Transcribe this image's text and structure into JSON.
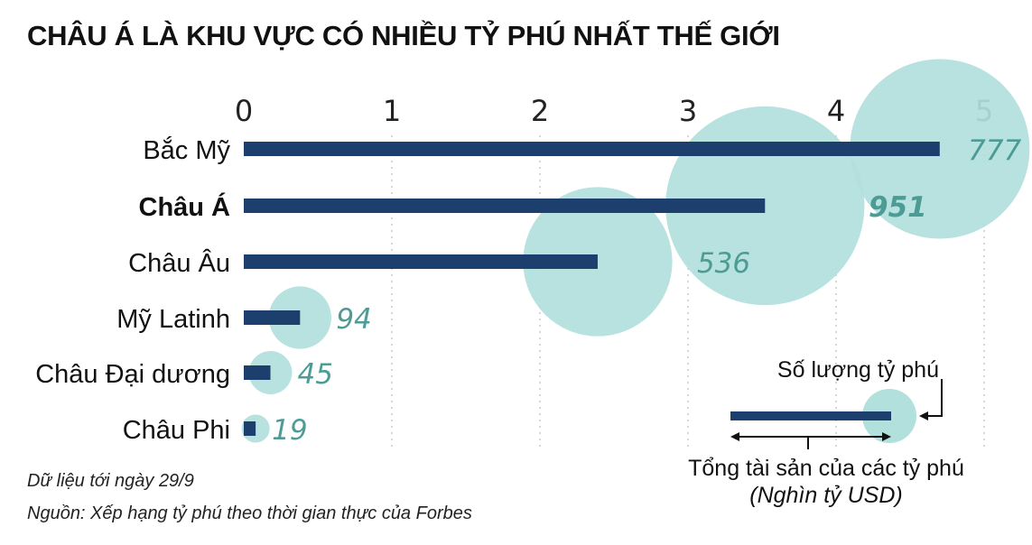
{
  "chart_data": {
    "type": "bar",
    "title": "CHÂU Á LÀ KHU VỰC CÓ NHIỀU TỶ PHÚ NHẤT THẾ GIỚI",
    "orientation": "horizontal",
    "categories": [
      "Bắc Mỹ",
      "Châu Á",
      "Châu Âu",
      "Mỹ Latinh",
      "Châu Đại dương",
      "Châu Phi"
    ],
    "highlight_category": "Châu Á",
    "series": [
      {
        "name": "Tổng tài sản của các tỷ phú (Nghìn tỷ USD)",
        "values": [
          4.7,
          3.52,
          2.39,
          0.38,
          0.18,
          0.08
        ]
      },
      {
        "name": "Số lượng tỷ phú",
        "values": [
          777,
          951,
          536,
          94,
          45,
          19
        ]
      }
    ],
    "xlim": [
      0,
      5
    ],
    "xticks": [
      "0",
      "1",
      "2",
      "3",
      "4",
      "5"
    ],
    "xaxis_position": "top",
    "grid": true,
    "colors": {
      "bar": "#1c3f6e",
      "bubble": "#b2e0dc",
      "count_label": "#4c9b95",
      "grid": "#c8c8c8"
    },
    "legend": {
      "count_label": "Số lượng tỷ phú",
      "wealth_label": "Tổng tài sản của các tỷ phú",
      "unit_label": "(Nghìn tỷ USD)",
      "placement": "bottom-right"
    }
  },
  "notes": {
    "date": "Dữ liệu tới ngày 29/9",
    "source": "Nguồn: Xếp hạng tỷ phú theo thời gian thực của Forbes"
  }
}
